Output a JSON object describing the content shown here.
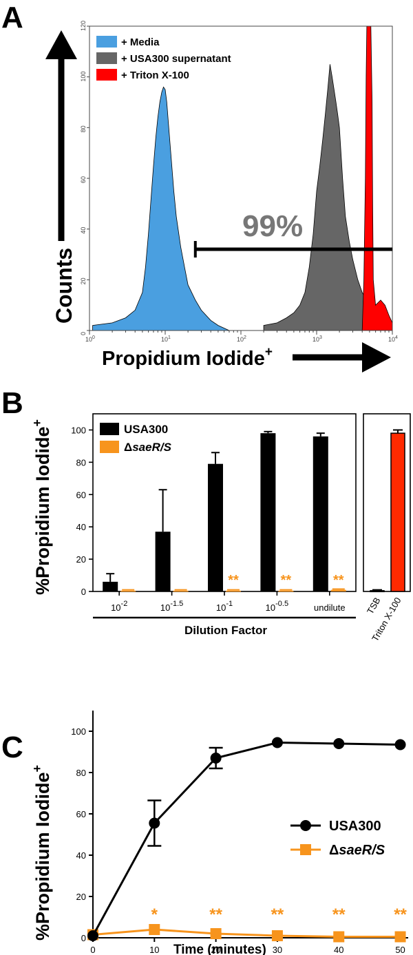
{
  "panels": {
    "a": {
      "letter": "A"
    },
    "b": {
      "letter": "B"
    },
    "c": {
      "letter": "C"
    }
  },
  "chart_data": [
    {
      "type": "area",
      "panel": "A",
      "ylabel": "Counts",
      "xlabel": "Propidium Iodide",
      "xlabel_superscript": "+",
      "xscale": "log",
      "xlim": [
        1,
        10000
      ],
      "ylim": [
        0,
        120
      ],
      "x_ticks": [
        "10",
        "10",
        "10",
        "10",
        "10"
      ],
      "x_tick_exponents": [
        "0",
        "1",
        "2",
        "3",
        "4"
      ],
      "y_ticks": [
        "0",
        "20",
        "40",
        "60",
        "80",
        "100",
        "120"
      ],
      "gate_label": "99%",
      "gate_range": [
        25,
        10000
      ],
      "legend_position": "top-left",
      "series": [
        {
          "name": "+ Media",
          "color": "#4a9fe0",
          "x": [
            1.1,
            2,
            3,
            4,
            5,
            5.5,
            6,
            6.5,
            7,
            7.5,
            8,
            8.5,
            9,
            9.5,
            10,
            10.5,
            11,
            12,
            13,
            14,
            16,
            18,
            20,
            25,
            30,
            40,
            50,
            70
          ],
          "y": [
            2,
            3,
            5,
            8,
            15,
            25,
            38,
            52,
            65,
            76,
            84,
            90,
            94,
            96,
            95,
            90,
            82,
            68,
            55,
            45,
            33,
            25,
            18,
            12,
            8,
            4,
            2,
            0
          ]
        },
        {
          "name": "+ USA300 supernatant",
          "color": "#666666",
          "x": [
            200,
            300,
            400,
            500,
            600,
            700,
            800,
            900,
            1000,
            1100,
            1200,
            1300,
            1400,
            1500,
            1600,
            1700,
            1800,
            1900,
            2000,
            2200,
            2400,
            2700,
            3000,
            3500,
            4000,
            5000,
            6000,
            7000,
            8000,
            10000
          ],
          "y": [
            2,
            3,
            5,
            7,
            10,
            15,
            25,
            38,
            55,
            65,
            75,
            85,
            95,
            105,
            100,
            95,
            90,
            85,
            80,
            60,
            45,
            35,
            28,
            20,
            15,
            10,
            8,
            6,
            4,
            2
          ]
        },
        {
          "name": "+ Triton X-100",
          "color": "#ff0000",
          "x": [
            4000,
            4200,
            4400,
            4500,
            4600,
            4800,
            5000,
            5200,
            5400,
            5500,
            5600,
            6000,
            7000,
            8000,
            9000,
            10000
          ],
          "y": [
            0,
            20,
            60,
            100,
            130,
            135,
            130,
            120,
            90,
            50,
            20,
            10,
            12,
            10,
            6,
            3
          ]
        }
      ]
    },
    {
      "type": "bar",
      "panel": "B",
      "ylabel": "%Propidium Iodide",
      "ylabel_superscript": "+",
      "xlabel": "Dilution Factor",
      "ylim": [
        0,
        110
      ],
      "y_ticks": [
        "0",
        "20",
        "40",
        "60",
        "80",
        "100"
      ],
      "categories": [
        "10-2",
        "10-1.5",
        "10-1",
        "10-0.5",
        "undilute"
      ],
      "category_labels": [
        {
          "base": "10",
          "exp": "-2"
        },
        {
          "base": "10",
          "exp": "-1.5"
        },
        {
          "base": "10",
          "exp": "-1"
        },
        {
          "base": "10",
          "exp": "-0.5"
        },
        {
          "base": "undilute",
          "exp": ""
        }
      ],
      "legend_position": "top-left",
      "series": [
        {
          "name": "USA300",
          "color": "#000000",
          "values": [
            6,
            37,
            79,
            98,
            96
          ],
          "errors": [
            5,
            26,
            7,
            1,
            2
          ]
        },
        {
          "name": "ΔsaeR/S",
          "name_prefix": "Δ",
          "name_italic": "saeR/S",
          "color": "#f7941d",
          "values": [
            0.5,
            0.5,
            0.5,
            0.5,
            1
          ],
          "errors": [
            0.5,
            0.5,
            0.5,
            0.5,
            0.5
          ]
        }
      ],
      "significance": [
        "",
        "",
        "**",
        "**",
        "**"
      ]
    },
    {
      "type": "bar",
      "panel": "B-controls",
      "ylim": [
        0,
        110
      ],
      "categories": [
        "TSB",
        "Triton X-100"
      ],
      "values": [
        0.5,
        98
      ],
      "errors": [
        0.5,
        2
      ],
      "colors": [
        "#000000",
        "#ff2a00"
      ]
    },
    {
      "type": "line",
      "panel": "C",
      "ylabel": "%Propidium Iodide",
      "ylabel_superscript": "+",
      "xlabel": "Time (minutes)",
      "xlim": [
        0,
        50
      ],
      "ylim": [
        0,
        110
      ],
      "x_ticks": [
        "0",
        "10",
        "20",
        "30",
        "40",
        "50"
      ],
      "y_ticks": [
        "0",
        "20",
        "40",
        "60",
        "80",
        "100"
      ],
      "legend_position": "right",
      "x": [
        0,
        10,
        20,
        30,
        40,
        50
      ],
      "series": [
        {
          "name": "USA300",
          "color": "#000000",
          "marker": "circle",
          "values": [
            1,
            55.5,
            87,
            94.5,
            94,
            93.5
          ],
          "errors": [
            0,
            11,
            5,
            0,
            0,
            0
          ]
        },
        {
          "name": "ΔsaeR/S",
          "name_prefix": "Δ",
          "name_italic": "saeR/S",
          "color": "#f7941d",
          "marker": "square",
          "values": [
            1.5,
            4,
            2,
            1,
            0.5,
            0.5
          ],
          "errors": [
            0,
            0,
            0,
            0,
            0,
            0
          ]
        }
      ],
      "significance": [
        "",
        "*",
        "**",
        "**",
        "**",
        "**"
      ]
    }
  ]
}
